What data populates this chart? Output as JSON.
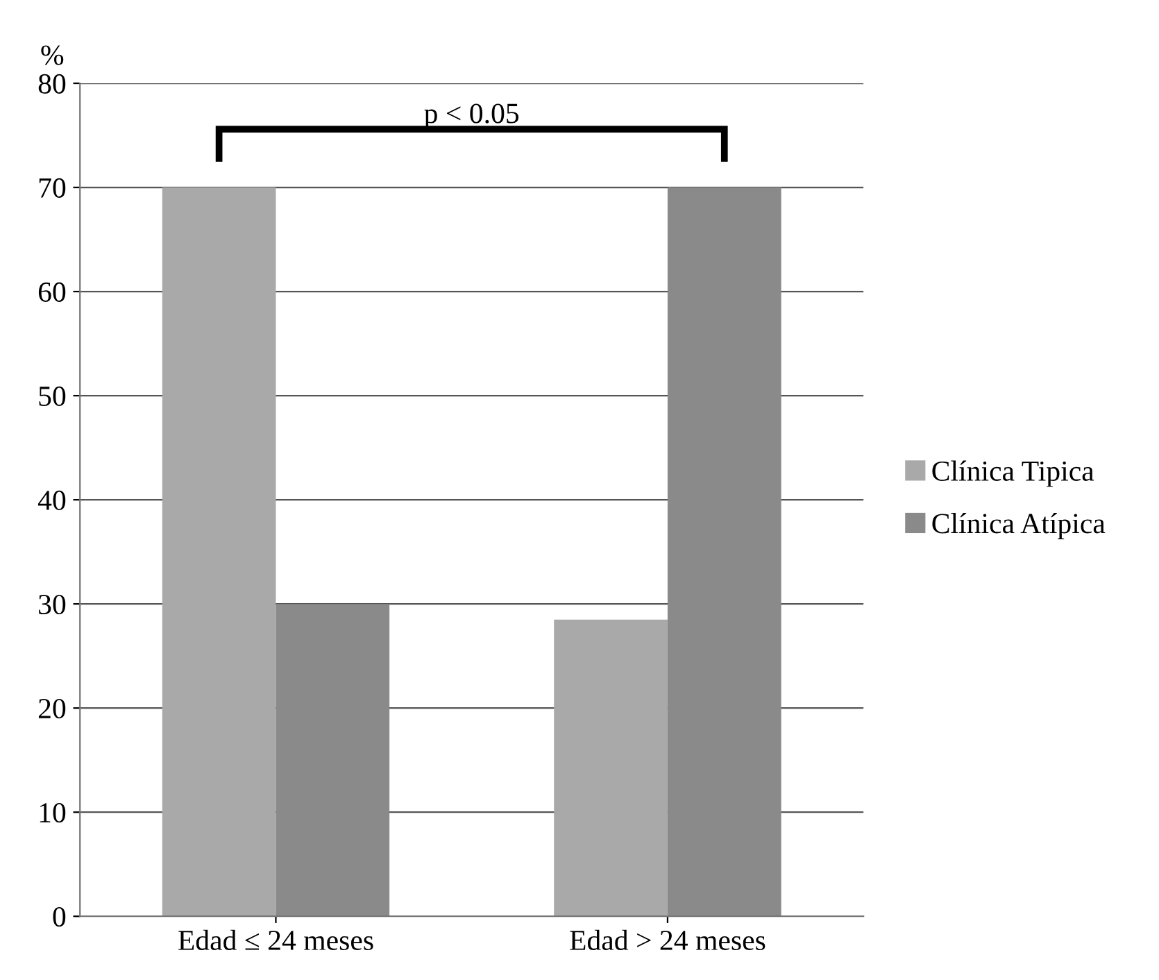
{
  "chart_data": {
    "type": "bar",
    "ylabel": "%",
    "categories": [
      "Edad ≤ 24 meses",
      "Edad > 24 meses"
    ],
    "series": [
      {
        "name": "Clínica Tipica",
        "color": "#a9a9a9",
        "values": [
          70,
          28.5
        ]
      },
      {
        "name": "Clínica Atípica",
        "color": "#8a8a8a",
        "values": [
          30,
          70
        ]
      }
    ],
    "ylim": [
      0,
      80
    ],
    "yticks": [
      0,
      10,
      20,
      30,
      40,
      50,
      60,
      70,
      80
    ],
    "grid": "y",
    "legend": "right",
    "annotations": [
      "p < 0.05"
    ]
  }
}
